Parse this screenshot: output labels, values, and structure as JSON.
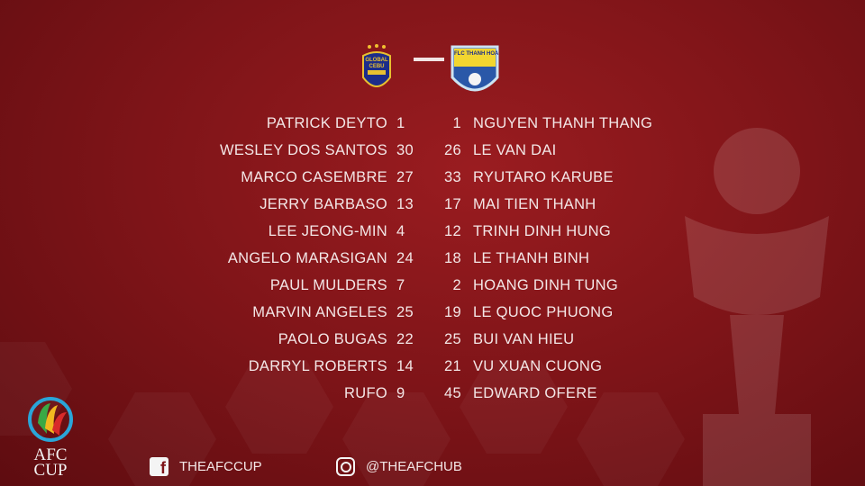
{
  "match": {
    "home_crest_text": "GLOBAL CEBU",
    "away_crest_text": "FLC THANH HOA",
    "home_lineup": [
      {
        "name": "PATRICK DEYTO",
        "number": "1"
      },
      {
        "name": "WESLEY DOS SANTOS",
        "number": "30"
      },
      {
        "name": "MARCO CASEMBRE",
        "number": "27"
      },
      {
        "name": "JERRY BARBASO",
        "number": "13"
      },
      {
        "name": "LEE JEONG-MIN",
        "number": "4"
      },
      {
        "name": "ANGELO MARASIGAN",
        "number": "24"
      },
      {
        "name": "PAUL MULDERS",
        "number": "7"
      },
      {
        "name": "MARVIN ANGELES",
        "number": "25"
      },
      {
        "name": "PAOLO BUGAS",
        "number": "22"
      },
      {
        "name": "DARRYL ROBERTS",
        "number": "14"
      },
      {
        "name": "RUFO",
        "number": "9"
      }
    ],
    "away_lineup": [
      {
        "name": "NGUYEN THANH THANG",
        "number": "1"
      },
      {
        "name": "LE VAN DAI",
        "number": "26"
      },
      {
        "name": "RYUTARO KARUBE",
        "number": "33"
      },
      {
        "name": "MAI TIEN THANH",
        "number": "17"
      },
      {
        "name": "TRINH DINH HUNG",
        "number": "12"
      },
      {
        "name": "LE THANH BINH",
        "number": "18"
      },
      {
        "name": "HOANG DINH TUNG",
        "number": "2"
      },
      {
        "name": "LE QUOC PHUONG",
        "number": "19"
      },
      {
        "name": "BUI VAN HIEU",
        "number": "25"
      },
      {
        "name": "VU XUAN CUONG",
        "number": "21"
      },
      {
        "name": "EDWARD OFERE",
        "number": "45"
      }
    ]
  },
  "footer": {
    "logo_line1": "AFC",
    "logo_line2": "CUP",
    "facebook_icon": "facebook-icon",
    "facebook_handle": "THEAFCCUP",
    "instagram_icon": "instagram-icon",
    "instagram_handle": "@THEAFCHUB"
  },
  "colors": {
    "background": "#7e1418",
    "text": "#f3e6e6"
  }
}
